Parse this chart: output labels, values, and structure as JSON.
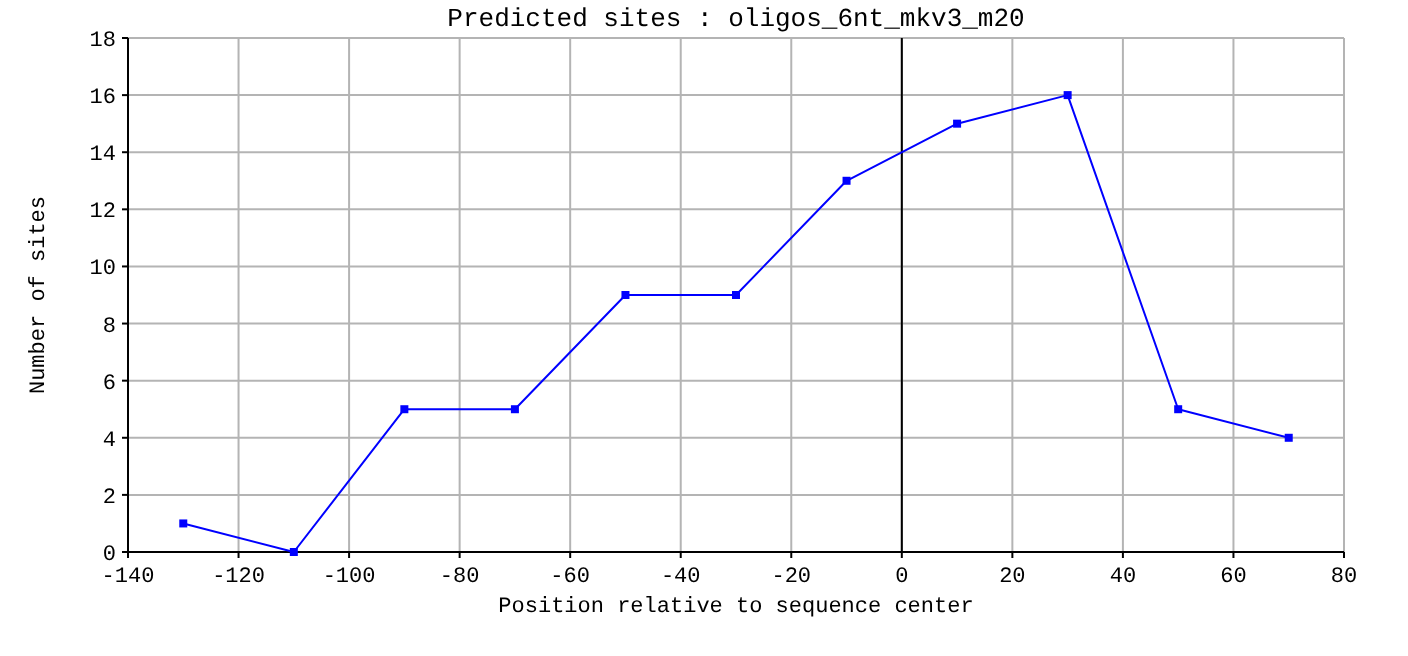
{
  "chart_data": {
    "type": "line",
    "title": "Predicted sites : oligos_6nt_mkv3_m20",
    "xlabel": "Position relative to sequence center",
    "ylabel": "Number of sites",
    "x": [
      -130,
      -110,
      -90,
      -70,
      -50,
      -30,
      -10,
      10,
      30,
      50,
      70
    ],
    "series": [
      {
        "color": "#0000ff",
        "values": [
          1,
          0,
          5,
          5,
          9,
          9,
          13,
          15,
          16,
          5,
          4
        ]
      }
    ],
    "xlim": [
      -140,
      80
    ],
    "xticks": [
      -140,
      -120,
      -100,
      -80,
      -60,
      -40,
      -20,
      0,
      20,
      40,
      60,
      80
    ],
    "ylim": [
      0,
      18
    ],
    "yticks": [
      0,
      2,
      4,
      6,
      8,
      10,
      12,
      14,
      16,
      18
    ],
    "grid": true,
    "marker": "square",
    "line_style": "solid",
    "ref_lines": [
      {
        "axis": "x",
        "value": 0,
        "color": "#000000"
      }
    ]
  }
}
